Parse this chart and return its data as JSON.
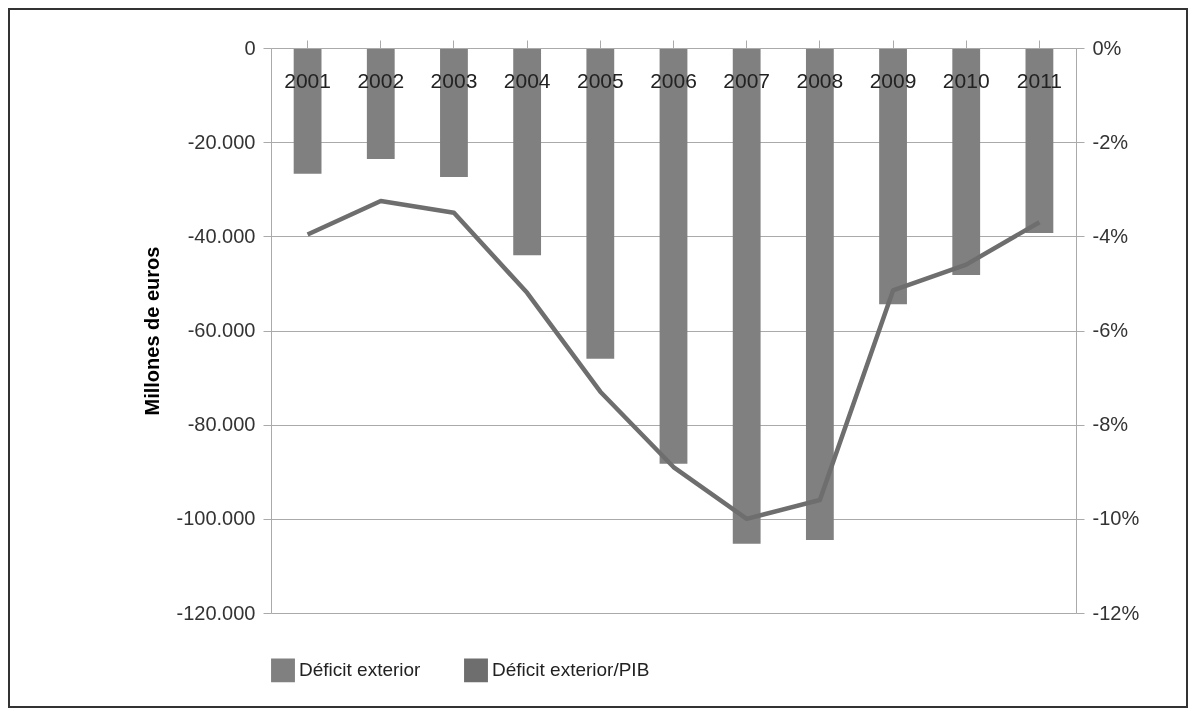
{
  "chart_data": {
    "type": "bar",
    "ylabel": "Millones de euros",
    "categories": [
      "2001",
      "2002",
      "2003",
      "2004",
      "2005",
      "2006",
      "2007",
      "2008",
      "2009",
      "2010",
      "2011"
    ],
    "series": [
      {
        "name": "Déficit exterior",
        "color": "#808080",
        "values": [
          -26700,
          -23600,
          -27400,
          -44000,
          -66000,
          -88300,
          -105300,
          -104500,
          -54400,
          -48200,
          -39300
        ]
      },
      {
        "name": "Déficit exterior/PIB",
        "type": "line",
        "axis": "y2",
        "color": "#6e6e6e",
        "values": [
          -3.96,
          -3.25,
          -3.5,
          -5.2,
          -7.3,
          -8.9,
          -10.0,
          -9.6,
          -5.15,
          -4.6,
          -3.7
        ]
      }
    ],
    "ylim": [
      -120000,
      0
    ],
    "yticks": [
      0,
      {
        "value": -20000,
        "label": "-20.000"
      },
      {
        "value": -40000,
        "label": "-40.000"
      },
      {
        "value": -60000,
        "label": "-60.000"
      },
      {
        "value": -80000,
        "label": "-80.000"
      },
      {
        "value": -100000,
        "label": "-100.000"
      },
      {
        "value": -120000,
        "label": "-120.000"
      }
    ],
    "y2lim": [
      -12,
      0
    ],
    "y2ticks": [
      {
        "value": 0,
        "label": "0%"
      },
      {
        "value": -2,
        "label": "-2%"
      },
      {
        "value": -4,
        "label": "-4%"
      },
      {
        "value": -6,
        "label": "-6%"
      },
      {
        "value": -8,
        "label": "-8%"
      },
      {
        "value": -10,
        "label": "-10%"
      },
      {
        "value": -12,
        "label": "-12%"
      }
    ],
    "grid": "y",
    "legend": "bottom",
    "marker": "none"
  }
}
